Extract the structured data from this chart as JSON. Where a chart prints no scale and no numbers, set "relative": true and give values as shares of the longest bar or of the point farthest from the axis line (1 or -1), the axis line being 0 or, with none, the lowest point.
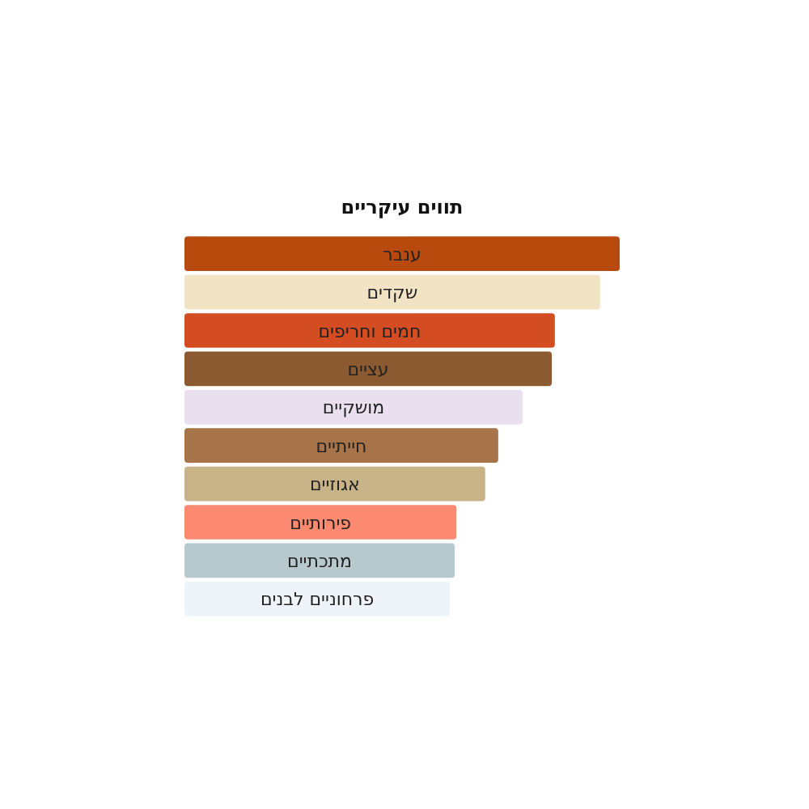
{
  "chart_data": {
    "type": "bar",
    "orientation": "horizontal",
    "relative": true,
    "title": "תווים עיקריים",
    "categories": [
      "ענבר",
      "שקדים",
      "חמים וחריפים",
      "עציים",
      "מושקיים",
      "חייתיים",
      "אגוזיים",
      "פירותיים",
      "מתכתיים",
      "פרחוניים לבנים"
    ],
    "values": [
      1,
      0.955,
      0.851,
      0.844,
      0.777,
      0.721,
      0.691,
      0.625,
      0.621,
      0.61
    ],
    "colors": [
      "#b94a0e",
      "#f2e3c4",
      "#d34c22",
      "#8b5a30",
      "#eadfee",
      "#a8744a",
      "#c8b287",
      "#fb8a70",
      "#b7c9cc",
      "#eff3fa"
    ]
  }
}
